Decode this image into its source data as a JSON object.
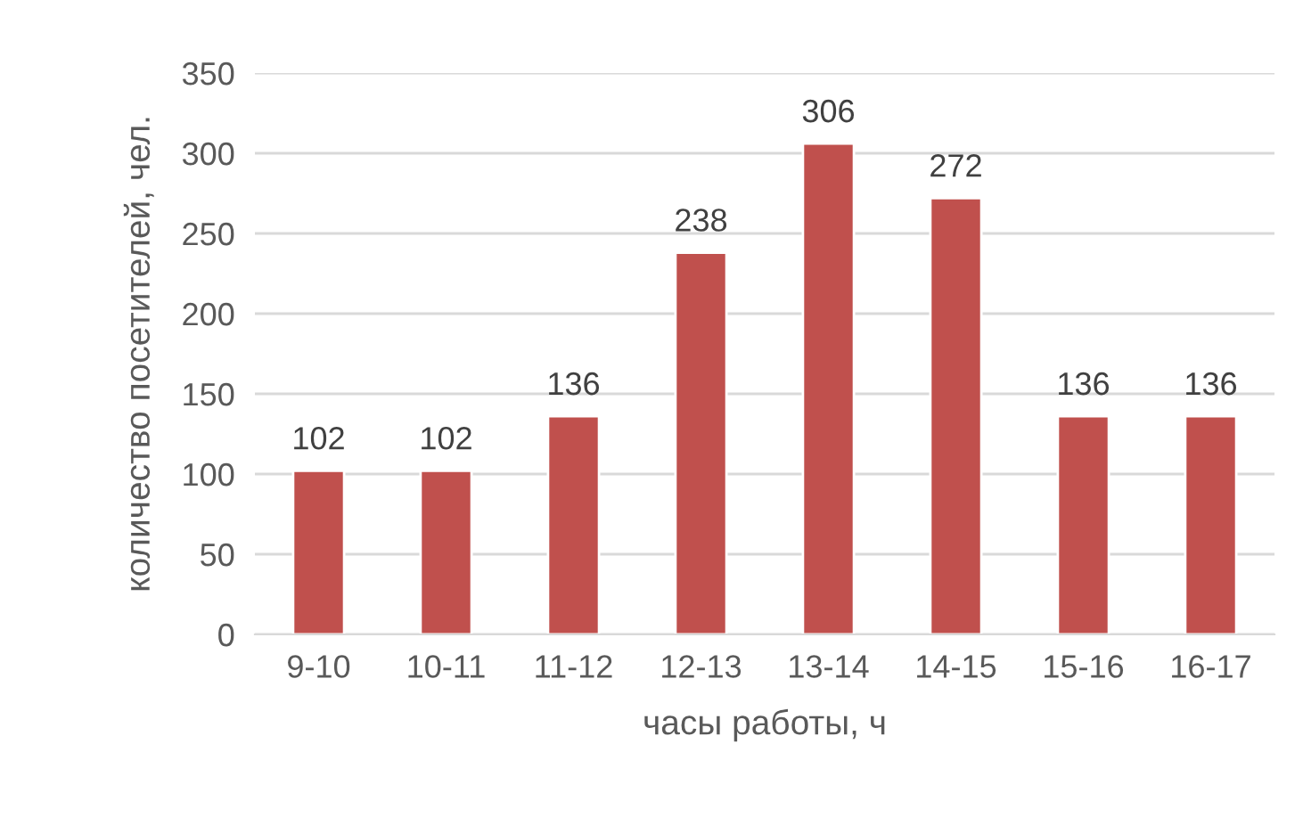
{
  "chart_data": {
    "type": "bar",
    "xlabel": "часы работы, ч",
    "ylabel": "количество посетителей, чел.",
    "categories": [
      "9-10",
      "10-11",
      "11-12",
      "12-13",
      "13-14",
      "14-15",
      "15-16",
      "16-17"
    ],
    "values": [
      102,
      102,
      136,
      238,
      306,
      272,
      136,
      136
    ],
    "color": "#c0504d",
    "ylim": [
      0,
      350
    ],
    "yticks": [
      0,
      50,
      100,
      150,
      200,
      250,
      300,
      350
    ],
    "grid": "y",
    "data_labels": true
  }
}
